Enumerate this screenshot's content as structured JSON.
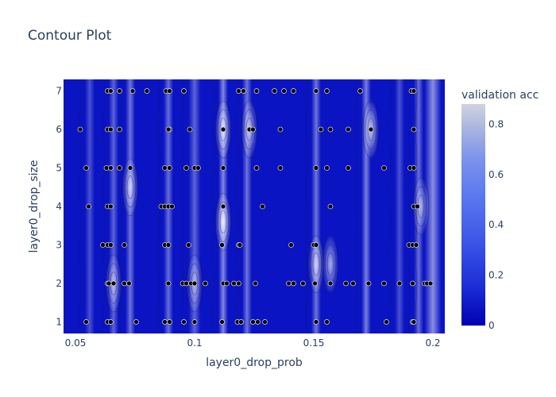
{
  "chart_data": {
    "type": "contour",
    "title": "Contour Plot",
    "xlabel": "layer0_drop_prob",
    "ylabel": "layer0_drop_size",
    "xlim": [
      0.045,
      0.205
    ],
    "ylim": [
      0.7,
      7.3
    ],
    "x_ticks": [
      0.05,
      0.1,
      0.15,
      0.2
    ],
    "x_tick_labels": [
      "0.05",
      "0.1",
      "0.15",
      "0.2"
    ],
    "y_ticks": [
      1,
      2,
      3,
      4,
      5,
      6,
      7
    ],
    "y_tick_labels": [
      "1",
      "2",
      "3",
      "4",
      "5",
      "6",
      "7"
    ],
    "colorbar": {
      "title": "validation acc",
      "range": [
        0,
        0.88
      ],
      "ticks": [
        0,
        0.2,
        0.4,
        0.6,
        0.8
      ],
      "tick_labels": [
        "0",
        "0.2",
        "0.4",
        "0.6",
        "0.8"
      ],
      "colors": [
        "#0000b3",
        "#1c2fd6",
        "#3d55e8",
        "#5a78ef",
        "#7b93ec",
        "#a6b2e0",
        "#d0d3df"
      ]
    },
    "contour_bands": [
      {
        "x": 0.056,
        "width": 0.004,
        "value": 0.35
      },
      {
        "x": 0.066,
        "width": 0.004,
        "value": 0.45
      },
      {
        "x": 0.073,
        "width": 0.004,
        "value": 0.55
      },
      {
        "x": 0.089,
        "width": 0.004,
        "value": 0.5
      },
      {
        "x": 0.1,
        "width": 0.005,
        "value": 0.45
      },
      {
        "x": 0.112,
        "width": 0.004,
        "value": 0.65
      },
      {
        "x": 0.122,
        "width": 0.004,
        "value": 0.55
      },
      {
        "x": 0.151,
        "width": 0.004,
        "value": 0.55
      },
      {
        "x": 0.172,
        "width": 0.004,
        "value": 0.6
      },
      {
        "x": 0.186,
        "width": 0.004,
        "value": 0.35
      },
      {
        "x": 0.194,
        "width": 0.004,
        "value": 0.5
      },
      {
        "x": 0.2,
        "width": 0.007,
        "value": 0.7
      }
    ],
    "hotspots": [
      {
        "x": 0.112,
        "y": 3.6,
        "value": 0.88
      },
      {
        "x": 0.112,
        "y": 6.0,
        "value": 0.8
      },
      {
        "x": 0.123,
        "y": 6.0,
        "value": 0.7
      },
      {
        "x": 0.174,
        "y": 6.0,
        "value": 0.75
      },
      {
        "x": 0.073,
        "y": 4.5,
        "value": 0.7
      },
      {
        "x": 0.151,
        "y": 2.5,
        "value": 0.7
      },
      {
        "x": 0.157,
        "y": 2.5,
        "value": 0.65
      },
      {
        "x": 0.066,
        "y": 2.0,
        "value": 0.6
      },
      {
        "x": 0.195,
        "y": 4.0,
        "value": 0.6
      },
      {
        "x": 0.1,
        "y": 2.0,
        "value": 0.55
      }
    ],
    "points": [
      {
        "x": 0.0635,
        "y": 7
      },
      {
        "x": 0.0648,
        "y": 7
      },
      {
        "x": 0.0685,
        "y": 7
      },
      {
        "x": 0.074,
        "y": 7
      },
      {
        "x": 0.08,
        "y": 7
      },
      {
        "x": 0.088,
        "y": 7
      },
      {
        "x": 0.0895,
        "y": 7
      },
      {
        "x": 0.0955,
        "y": 7
      },
      {
        "x": 0.1185,
        "y": 7
      },
      {
        "x": 0.1205,
        "y": 7
      },
      {
        "x": 0.126,
        "y": 7
      },
      {
        "x": 0.1335,
        "y": 7
      },
      {
        "x": 0.1375,
        "y": 7
      },
      {
        "x": 0.1415,
        "y": 7
      },
      {
        "x": 0.151,
        "y": 7
      },
      {
        "x": 0.1555,
        "y": 7
      },
      {
        "x": 0.1695,
        "y": 7
      },
      {
        "x": 0.191,
        "y": 7
      },
      {
        "x": 0.192,
        "y": 7
      },
      {
        "x": 0.052,
        "y": 6
      },
      {
        "x": 0.0635,
        "y": 6
      },
      {
        "x": 0.0648,
        "y": 6
      },
      {
        "x": 0.0685,
        "y": 6
      },
      {
        "x": 0.0895,
        "y": 6
      },
      {
        "x": 0.089,
        "y": 6
      },
      {
        "x": 0.098,
        "y": 6
      },
      {
        "x": 0.112,
        "y": 6
      },
      {
        "x": 0.123,
        "y": 6
      },
      {
        "x": 0.1245,
        "y": 6
      },
      {
        "x": 0.136,
        "y": 6
      },
      {
        "x": 0.153,
        "y": 6
      },
      {
        "x": 0.157,
        "y": 6
      },
      {
        "x": 0.1645,
        "y": 6
      },
      {
        "x": 0.174,
        "y": 6
      },
      {
        "x": 0.192,
        "y": 6
      },
      {
        "x": 0.0545,
        "y": 5
      },
      {
        "x": 0.063,
        "y": 5
      },
      {
        "x": 0.0648,
        "y": 5
      },
      {
        "x": 0.0685,
        "y": 5
      },
      {
        "x": 0.073,
        "y": 5
      },
      {
        "x": 0.0875,
        "y": 5
      },
      {
        "x": 0.0895,
        "y": 5
      },
      {
        "x": 0.0965,
        "y": 5
      },
      {
        "x": 0.1,
        "y": 5
      },
      {
        "x": 0.1015,
        "y": 5
      },
      {
        "x": 0.112,
        "y": 5
      },
      {
        "x": 0.126,
        "y": 5
      },
      {
        "x": 0.136,
        "y": 5
      },
      {
        "x": 0.151,
        "y": 5
      },
      {
        "x": 0.1555,
        "y": 5
      },
      {
        "x": 0.1645,
        "y": 5
      },
      {
        "x": 0.1795,
        "y": 5
      },
      {
        "x": 0.1905,
        "y": 5
      },
      {
        "x": 0.192,
        "y": 5
      },
      {
        "x": 0.0555,
        "y": 4
      },
      {
        "x": 0.0635,
        "y": 4
      },
      {
        "x": 0.0648,
        "y": 4
      },
      {
        "x": 0.086,
        "y": 4
      },
      {
        "x": 0.0875,
        "y": 4
      },
      {
        "x": 0.089,
        "y": 4
      },
      {
        "x": 0.0905,
        "y": 4
      },
      {
        "x": 0.112,
        "y": 4
      },
      {
        "x": 0.1285,
        "y": 4
      },
      {
        "x": 0.157,
        "y": 4
      },
      {
        "x": 0.192,
        "y": 4
      },
      {
        "x": 0.1935,
        "y": 4
      },
      {
        "x": 0.0615,
        "y": 3
      },
      {
        "x": 0.0635,
        "y": 3
      },
      {
        "x": 0.0648,
        "y": 3
      },
      {
        "x": 0.0705,
        "y": 3
      },
      {
        "x": 0.0875,
        "y": 3
      },
      {
        "x": 0.089,
        "y": 3
      },
      {
        "x": 0.0975,
        "y": 3
      },
      {
        "x": 0.1115,
        "y": 3
      },
      {
        "x": 0.1185,
        "y": 3
      },
      {
        "x": 0.119,
        "y": 3
      },
      {
        "x": 0.1405,
        "y": 3
      },
      {
        "x": 0.15,
        "y": 3
      },
      {
        "x": 0.151,
        "y": 3
      },
      {
        "x": 0.19,
        "y": 3
      },
      {
        "x": 0.1915,
        "y": 3
      },
      {
        "x": 0.193,
        "y": 3
      },
      {
        "x": 0.0635,
        "y": 2
      },
      {
        "x": 0.064,
        "y": 2
      },
      {
        "x": 0.066,
        "y": 2
      },
      {
        "x": 0.0705,
        "y": 2
      },
      {
        "x": 0.0725,
        "y": 2
      },
      {
        "x": 0.089,
        "y": 2
      },
      {
        "x": 0.095,
        "y": 2
      },
      {
        "x": 0.0965,
        "y": 2
      },
      {
        "x": 0.0985,
        "y": 2
      },
      {
        "x": 0.1,
        "y": 2
      },
      {
        "x": 0.1045,
        "y": 2
      },
      {
        "x": 0.112,
        "y": 2
      },
      {
        "x": 0.1135,
        "y": 2
      },
      {
        "x": 0.1165,
        "y": 2
      },
      {
        "x": 0.1185,
        "y": 2
      },
      {
        "x": 0.1255,
        "y": 2
      },
      {
        "x": 0.1395,
        "y": 2
      },
      {
        "x": 0.1415,
        "y": 2
      },
      {
        "x": 0.1455,
        "y": 2
      },
      {
        "x": 0.1505,
        "y": 2
      },
      {
        "x": 0.157,
        "y": 2
      },
      {
        "x": 0.1635,
        "y": 2
      },
      {
        "x": 0.1665,
        "y": 2
      },
      {
        "x": 0.173,
        "y": 2
      },
      {
        "x": 0.1795,
        "y": 2
      },
      {
        "x": 0.186,
        "y": 2
      },
      {
        "x": 0.1915,
        "y": 2
      },
      {
        "x": 0.1965,
        "y": 2
      },
      {
        "x": 0.1975,
        "y": 2
      },
      {
        "x": 0.199,
        "y": 2
      },
      {
        "x": 0.0545,
        "y": 1
      },
      {
        "x": 0.0635,
        "y": 1
      },
      {
        "x": 0.0648,
        "y": 1
      },
      {
        "x": 0.0755,
        "y": 1
      },
      {
        "x": 0.0875,
        "y": 1
      },
      {
        "x": 0.0895,
        "y": 1
      },
      {
        "x": 0.0955,
        "y": 1
      },
      {
        "x": 0.1,
        "y": 1
      },
      {
        "x": 0.1115,
        "y": 1
      },
      {
        "x": 0.118,
        "y": 1
      },
      {
        "x": 0.1195,
        "y": 1
      },
      {
        "x": 0.1245,
        "y": 1
      },
      {
        "x": 0.1265,
        "y": 1
      },
      {
        "x": 0.1295,
        "y": 1
      },
      {
        "x": 0.151,
        "y": 1
      },
      {
        "x": 0.1555,
        "y": 1
      },
      {
        "x": 0.1805,
        "y": 1
      },
      {
        "x": 0.1915,
        "y": 1
      },
      {
        "x": 0.192,
        "y": 1
      }
    ]
  }
}
